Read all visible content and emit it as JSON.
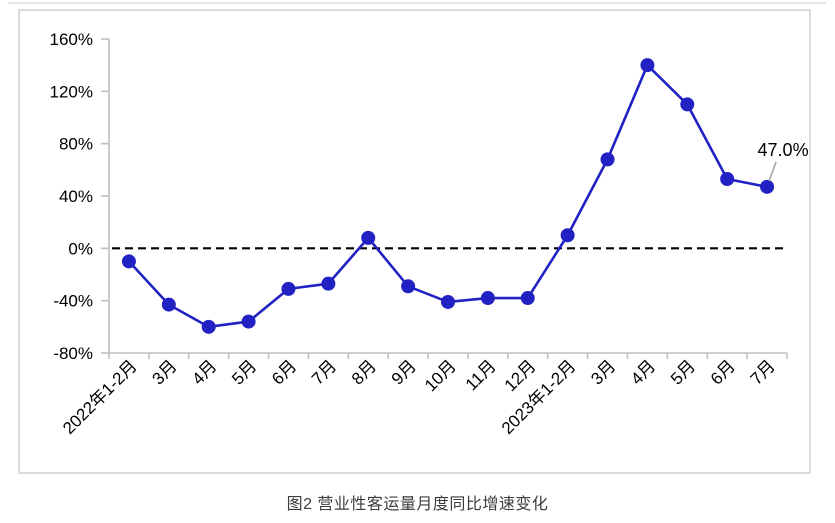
{
  "page": {
    "caption": "图2  营业性客运量月度同比增速变化"
  },
  "chart_data": {
    "type": "line",
    "title": "图2 营业性客运量月度同比增速变化",
    "categories": [
      "2022年1-2月",
      "3月",
      "4月",
      "5月",
      "6月",
      "7月",
      "8月",
      "9月",
      "10月",
      "11月",
      "12月",
      "2023年1-2月",
      "3月",
      "4月",
      "5月",
      "6月",
      "7月"
    ],
    "series": [
      {
        "name": "营业性客运量月度同比增速",
        "values": [
          -10,
          -43,
          -60,
          -56,
          -31,
          -27,
          8,
          -29,
          -41,
          -38,
          -38,
          10,
          68,
          140,
          110,
          53,
          47
        ]
      }
    ],
    "ylim": [
      -80,
      160
    ],
    "yticks": [
      {
        "value": 160,
        "label": "160%"
      },
      {
        "value": 120,
        "label": "120%"
      },
      {
        "value": 80,
        "label": "80%"
      },
      {
        "value": 40,
        "label": "40%"
      },
      {
        "value": 0,
        "label": "0%"
      },
      {
        "value": -40,
        "label": "-40%"
      },
      {
        "value": -80,
        "label": "-80%"
      }
    ],
    "zero_line": {
      "value": 0,
      "style": "dashed"
    },
    "annotation": {
      "text": "47.0%",
      "point_index": 16
    },
    "legend": "none",
    "grid": "off",
    "xlabel": "",
    "ylabel": "",
    "colors": {
      "line": "#2222c4",
      "marker": "#2222c4",
      "axis": "#bfbfbf",
      "zero_line": "#000000",
      "tick_text": "#000000",
      "annotation_text": "#000000",
      "annotation_leader": "#a6a6a6",
      "frame": "#dbdbdb",
      "caption": "#3c3c3c"
    }
  }
}
